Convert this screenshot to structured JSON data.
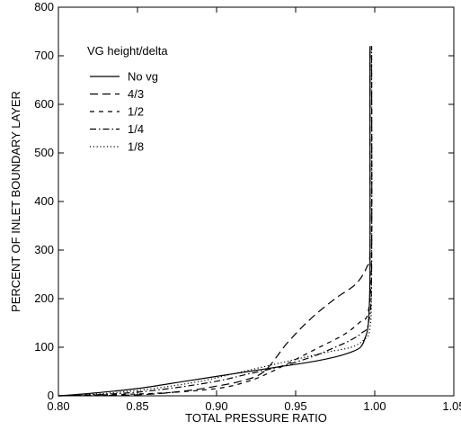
{
  "chart_data": {
    "type": "line",
    "xlabel": "TOTAL PRESSURE RATIO",
    "ylabel": "PERCENT OF INLET BOUNDARY LAYER",
    "xlim": [
      0.8,
      1.05
    ],
    "ylim": [
      0,
      800
    ],
    "xticks": [
      0.8,
      0.85,
      0.9,
      0.95,
      1.0,
      1.05
    ],
    "xtick_labels": [
      "0.80",
      "0.85",
      "0.90",
      "0.95",
      "1.00",
      "1.05"
    ],
    "yticks": [
      0,
      100,
      200,
      300,
      400,
      500,
      600,
      700,
      800
    ],
    "ytick_labels": [
      "0",
      "100",
      "200",
      "300",
      "400",
      "500",
      "600",
      "700",
      "800"
    ],
    "grid": false,
    "legend": {
      "title": "VG height/delta",
      "placement": "top-left"
    },
    "series": [
      {
        "name": "No vg",
        "dash": "solid",
        "x": [
          0.8,
          0.82,
          0.85,
          0.88,
          0.9,
          0.92,
          0.94,
          0.96,
          0.975,
          0.985,
          0.991,
          0.994,
          0.996,
          0.997,
          0.997,
          0.997
        ],
        "y": [
          0,
          5,
          15,
          30,
          40,
          50,
          60,
          70,
          80,
          90,
          100,
          120,
          150,
          250,
          500,
          720
        ]
      },
      {
        "name": "4/3",
        "dash": "long-dash",
        "x": [
          0.8,
          0.85,
          0.88,
          0.9,
          0.915,
          0.93,
          0.945,
          0.96,
          0.975,
          0.988,
          0.995,
          0.997,
          0.997,
          0.997
        ],
        "y": [
          0,
          2,
          10,
          20,
          30,
          50,
          110,
          160,
          200,
          230,
          265,
          300,
          500,
          720
        ]
      },
      {
        "name": "1/2",
        "dash": "short-dash",
        "x": [
          0.8,
          0.86,
          0.9,
          0.92,
          0.935,
          0.95,
          0.965,
          0.98,
          0.99,
          0.996,
          0.998,
          0.998
        ],
        "y": [
          0,
          5,
          15,
          30,
          50,
          75,
          100,
          125,
          150,
          175,
          300,
          720
        ]
      },
      {
        "name": "1/4",
        "dash": "dash-dot",
        "x": [
          0.8,
          0.84,
          0.87,
          0.9,
          0.92,
          0.94,
          0.96,
          0.975,
          0.985,
          0.992,
          0.996,
          0.998,
          0.998
        ],
        "y": [
          0,
          5,
          15,
          30,
          45,
          60,
          80,
          100,
          115,
          130,
          150,
          250,
          720
        ]
      },
      {
        "name": "1/8",
        "dash": "dotted",
        "x": [
          0.8,
          0.83,
          0.86,
          0.89,
          0.91,
          0.93,
          0.95,
          0.97,
          0.985,
          0.993,
          0.997,
          0.998,
          0.998
        ],
        "y": [
          0,
          5,
          15,
          30,
          45,
          60,
          75,
          90,
          100,
          115,
          140,
          250,
          720
        ]
      }
    ]
  },
  "colors": {
    "line": "#000000",
    "background": "#ffffff"
  }
}
